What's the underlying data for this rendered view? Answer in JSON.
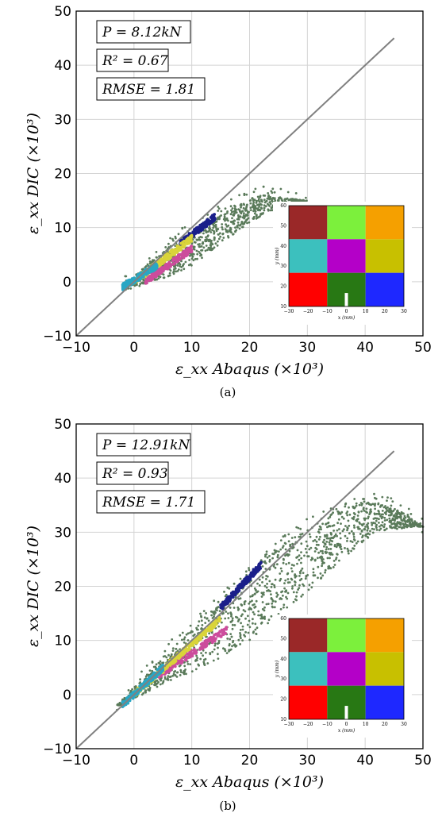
{
  "figure": {
    "caption_a": "(a)",
    "caption_b": "(b)"
  },
  "colors": {
    "scatter": "#5a7a5a",
    "identity_line": "#808080",
    "blue": "#1a1f8a",
    "yellow": "#d9d43a",
    "magenta": "#cc4c9c",
    "cyan": "#29a6c4"
  },
  "chart_data": [
    {
      "type": "scatter",
      "panel": "(a)",
      "xlabel": "ε_xx Abaqus (×10³)",
      "ylabel": "ε_xx DIC (×10³)",
      "xlim": [
        -10,
        50
      ],
      "ylim": [
        -10,
        50
      ],
      "xticks": [
        "−10",
        "0",
        "10",
        "20",
        "30",
        "40",
        "50"
      ],
      "yticks": [
        "−10",
        "0",
        "10",
        "20",
        "30",
        "40",
        "50"
      ],
      "grid": true,
      "annotations": [
        "P = 8.12kN",
        "R² = 0.67",
        "RMSE = 1.81"
      ],
      "identity_line": {
        "x": [
          -10,
          45
        ],
        "y": [
          -10,
          45
        ]
      },
      "series": [
        {
          "color": "green",
          "shape": "cloud",
          "x_range": [
            -2,
            30
          ],
          "y_max": 16,
          "upper_curve": [
            [
              -2,
              -1
            ],
            [
              3,
              4
            ],
            [
              8,
              8
            ],
            [
              13,
              11
            ],
            [
              18,
              14.5
            ],
            [
              22,
              16
            ],
            [
              26,
              15.5
            ],
            [
              30,
              15
            ]
          ],
          "lower_curve": [
            [
              -1,
              -1.5
            ],
            [
              5,
              0.5
            ],
            [
              10,
              3
            ],
            [
              15,
              7
            ],
            [
              20,
              11
            ],
            [
              24,
              13
            ],
            [
              29,
              14.5
            ]
          ]
        },
        {
          "color": "blue",
          "shape": "band",
          "x_range": [
            8,
            14
          ],
          "y_range": [
            7,
            12
          ]
        },
        {
          "color": "magenta",
          "shape": "band",
          "x_range": [
            2,
            10
          ],
          "y_range": [
            0,
            7
          ]
        },
        {
          "color": "yellow",
          "shape": "band",
          "x_range": [
            0,
            10
          ],
          "y_range": [
            0,
            8
          ]
        },
        {
          "color": "cyan",
          "shape": "band",
          "x_range": [
            -2,
            4
          ],
          "y_range": [
            -1,
            3
          ]
        }
      ],
      "inset": {
        "xlabel": "x (mm)",
        "ylabel": "y (mm)",
        "xticks": [
          "−30",
          "−20",
          "−10",
          "0",
          "10",
          "20",
          "30"
        ],
        "yticks": [
          "10",
          "20",
          "30",
          "40",
          "50",
          "60"
        ],
        "grid": [
          [
            "#9a2828",
            "#7cf03c",
            "#f5a000"
          ],
          [
            "#3cc0be",
            "#b400c8",
            "#c8c000"
          ],
          [
            "#ff0000",
            "#287814",
            "#1e28ff"
          ]
        ]
      }
    },
    {
      "type": "scatter",
      "panel": "(b)",
      "xlabel": "ε_xx Abaqus (×10³)",
      "ylabel": "ε_xx DIC (×10³)",
      "xlim": [
        -10,
        50
      ],
      "ylim": [
        -10,
        50
      ],
      "xticks": [
        "−10",
        "0",
        "10",
        "20",
        "30",
        "40",
        "50"
      ],
      "yticks": [
        "−10",
        "0",
        "10",
        "20",
        "30",
        "40",
        "50"
      ],
      "grid": true,
      "annotations": [
        "P = 12.91kN",
        "R² = 0.93",
        "RMSE = 1.71"
      ],
      "identity_line": {
        "x": [
          -10,
          45
        ],
        "y": [
          -10,
          45
        ]
      },
      "series": [
        {
          "color": "green",
          "shape": "cloud",
          "x_range": [
            -3,
            50
          ],
          "y_max": 36,
          "upper_curve": [
            [
              -3,
              -2
            ],
            [
              5,
              7
            ],
            [
              15,
              17
            ],
            [
              25,
              27
            ],
            [
              33,
              33
            ],
            [
              40,
              36
            ],
            [
              46,
              34
            ],
            [
              50,
              31
            ]
          ],
          "lower_curve": [
            [
              -2,
              -2
            ],
            [
              5,
              2
            ],
            [
              12,
              5
            ],
            [
              20,
              10
            ],
            [
              28,
              17
            ],
            [
              35,
              24
            ],
            [
              42,
              30
            ],
            [
              48,
              31
            ]
          ]
        },
        {
          "color": "blue",
          "shape": "band",
          "x_range": [
            15,
            22
          ],
          "y_range": [
            16,
            24
          ]
        },
        {
          "color": "magenta",
          "shape": "band",
          "x_range": [
            4,
            16
          ],
          "y_range": [
            3,
            13
          ]
        },
        {
          "color": "yellow",
          "shape": "band",
          "x_range": [
            0,
            15
          ],
          "y_range": [
            0,
            14
          ]
        },
        {
          "color": "cyan",
          "shape": "band",
          "x_range": [
            -2,
            5
          ],
          "y_range": [
            -2,
            5
          ]
        }
      ],
      "inset": {
        "xlabel": "x (mm)",
        "ylabel": "y (mm)",
        "xticks": [
          "−30",
          "−20",
          "−10",
          "0",
          "10",
          "20",
          "30"
        ],
        "yticks": [
          "10",
          "20",
          "30",
          "40",
          "50",
          "60"
        ],
        "grid": [
          [
            "#9a2828",
            "#7cf03c",
            "#f5a000"
          ],
          [
            "#3cc0be",
            "#b400c8",
            "#c8c000"
          ],
          [
            "#ff0000",
            "#287814",
            "#1e28ff"
          ]
        ]
      }
    }
  ]
}
